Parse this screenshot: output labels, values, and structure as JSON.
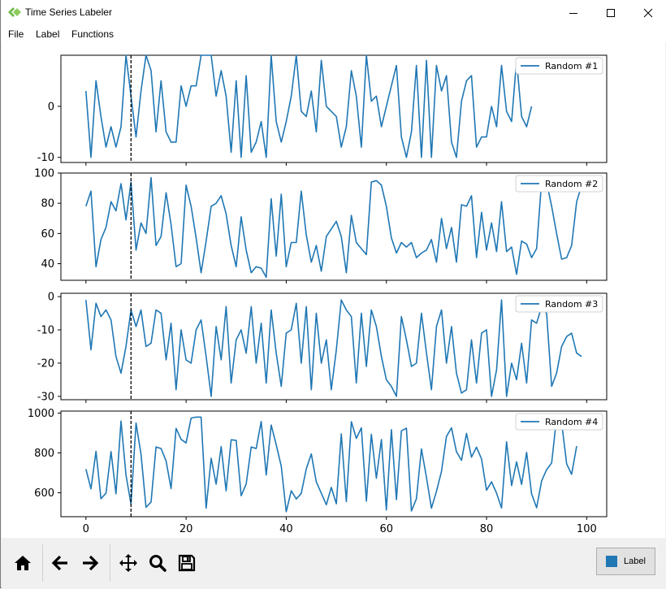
{
  "window": {
    "title": "Time Series Labeler",
    "controls": {
      "minimize": "minimize-icon",
      "maximize": "maximize-icon",
      "close": "close-icon"
    }
  },
  "menu": [
    {
      "label": "File"
    },
    {
      "label": "Label"
    },
    {
      "label": "Functions"
    }
  ],
  "cursor_x": 9,
  "chart_data": {
    "type": "line",
    "color": "#1f77b4",
    "x_ticks": [
      0,
      20,
      40,
      60,
      80,
      100
    ],
    "xlim": [
      -5,
      104
    ],
    "panels": [
      {
        "legend": "Random #1",
        "ylim": [
          -11,
          10
        ],
        "yticks": [
          0,
          -10
        ],
        "values": [
          3,
          -10,
          5,
          -2,
          -8,
          -4,
          -8,
          -4,
          10,
          2,
          -6,
          3,
          10,
          7,
          -5,
          5,
          -5,
          -7,
          -7,
          4,
          0,
          4,
          4,
          10,
          10,
          10,
          2,
          7,
          2,
          -9,
          5,
          -10,
          6,
          -9,
          -7,
          -3,
          -10,
          10,
          -3,
          -7,
          -3,
          2,
          10,
          -1,
          -2,
          3,
          -5,
          9,
          0,
          -1,
          -2,
          -8,
          -4,
          7,
          2,
          -8,
          10,
          1,
          2,
          -4,
          0,
          4,
          8,
          -6,
          -10,
          -5,
          8,
          -10,
          9,
          -10,
          8,
          3,
          6,
          -7,
          -10,
          1,
          5,
          6,
          -8,
          -6,
          -6,
          0,
          -4,
          8,
          -1,
          -3,
          9,
          -2,
          -4,
          0
        ]
      },
      {
        "legend": "Random #2",
        "ylim": [
          29,
          100
        ],
        "yticks": [
          100,
          80,
          60,
          40
        ],
        "values": [
          78,
          88,
          38,
          56,
          64,
          81,
          75,
          93,
          69,
          94,
          49,
          67,
          60,
          97,
          52,
          58,
          87,
          66,
          38,
          40,
          92,
          78,
          57,
          34,
          55,
          78,
          80,
          85,
          73,
          52,
          38,
          71,
          49,
          34,
          38,
          37,
          31,
          83,
          45,
          86,
          38,
          54,
          54,
          88,
          59,
          41,
          52,
          35,
          58,
          63,
          68,
          58,
          34,
          72,
          54,
          50,
          46,
          94,
          95,
          92,
          78,
          57,
          47,
          54,
          51,
          54,
          44,
          47,
          49,
          56,
          41,
          70,
          50,
          64,
          41,
          79,
          78,
          85,
          44,
          74,
          49,
          67,
          48,
          81,
          48,
          51,
          33,
          55,
          53,
          44,
          50,
          95,
          94,
          78,
          60,
          43,
          44,
          52,
          81,
          92
        ]
      },
      {
        "legend": "Random #3",
        "ylim": [
          -31,
          1
        ],
        "yticks": [
          0,
          -10,
          -20,
          -30
        ],
        "values": [
          -1,
          -16,
          -2,
          -6,
          -4,
          -7,
          -18,
          -23,
          -15,
          -4,
          -9,
          -4,
          -15,
          -14,
          -4,
          -5,
          -19,
          -8,
          -28,
          -10,
          -19,
          -20,
          -10,
          -7,
          -18,
          -30,
          -9,
          -19,
          -3,
          -26,
          -13,
          -10,
          -17,
          -3,
          -20,
          -8,
          -26,
          -4,
          -17,
          -27,
          -11,
          -10,
          -2,
          -20,
          -3,
          -28,
          -5,
          -20,
          -13,
          -28,
          -16,
          -1,
          -4,
          -6,
          -26,
          -5,
          -21,
          -4,
          -9,
          -18,
          -25,
          -27,
          -30,
          -6,
          -13,
          -21,
          -20,
          -5,
          -17,
          -28,
          -9,
          -4,
          -20,
          -9,
          -23,
          -29,
          -28,
          -13,
          -26,
          -11,
          -10,
          -30,
          -22,
          -1,
          -30,
          -20,
          -25,
          -14,
          -26,
          -7,
          -8,
          -3,
          -5,
          -27,
          -23,
          -15,
          -12,
          -11,
          -17,
          -18
        ]
      },
      {
        "legend": "Random #4",
        "ylim": [
          480,
          1010
        ],
        "yticks": [
          1000,
          800,
          600
        ],
        "values": [
          719,
          620,
          808,
          570,
          598,
          807,
          595,
          960,
          690,
          542,
          950,
          794,
          527,
          554,
          830,
          822,
          760,
          621,
          923,
          868,
          850,
          975,
          980,
          980,
          523,
          773,
          643,
          832,
          610,
          866,
          863,
          585,
          644,
          830,
          822,
          958,
          689,
          940,
          841,
          733,
          505,
          610,
          569,
          597,
          720,
          795,
          655,
          598,
          540,
          627,
          545,
          896,
          556,
          957,
          873,
          926,
          558,
          894,
          673,
          867,
          514,
          917,
          566,
          911,
          924,
          509,
          570,
          820,
          676,
          523,
          607,
          708,
          883,
          926,
          806,
          763,
          898,
          779,
          829,
          770,
          613,
          655,
          598,
          524,
          856,
          636,
          755,
          642,
          803,
          595,
          525,
          660,
          716,
          750,
          976,
          952,
          745,
          693,
          834
        ]
      }
    ]
  },
  "toolbar": {
    "buttons": [
      {
        "name": "home-icon"
      },
      {
        "name": "back-arrow-icon"
      },
      {
        "name": "forward-arrow-icon"
      },
      {
        "name": "pan-icon"
      },
      {
        "name": "zoom-icon"
      },
      {
        "name": "save-icon"
      }
    ],
    "label_button": "Label",
    "label_color": "#1f77b4"
  }
}
